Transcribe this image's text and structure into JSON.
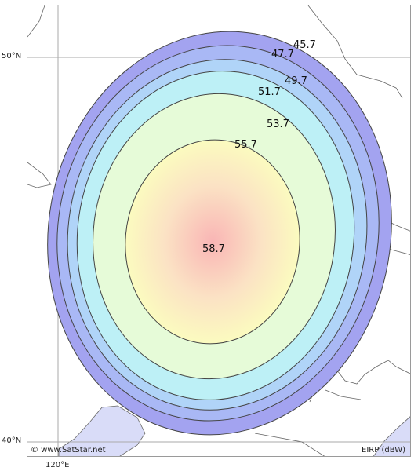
{
  "map": {
    "copyright": "© www.SatStar.net",
    "legend_unit": "EIRP (dBW)",
    "lat_labels": [
      "50°N",
      "40°N"
    ],
    "lon_labels": [
      "120°E"
    ],
    "contours": [
      {
        "value": "45.7",
        "fill": "#a3a3f0"
      },
      {
        "value": "47.7",
        "fill": "#a9b8f5"
      },
      {
        "value": "49.7",
        "fill": "#b0d4f8"
      },
      {
        "value": "51.7",
        "fill": "#bdf0f6"
      },
      {
        "value": "53.7",
        "fill": "#e6fbd8"
      },
      {
        "value": "55.7",
        "fill": "#fbfbbf"
      }
    ],
    "peak": {
      "value": "58.7",
      "fill": "#f8b4b4"
    },
    "colors": {
      "land": "#ffffff",
      "water": "#d9dcf8",
      "border": "#666666",
      "grid": "#aaaaaa"
    }
  }
}
